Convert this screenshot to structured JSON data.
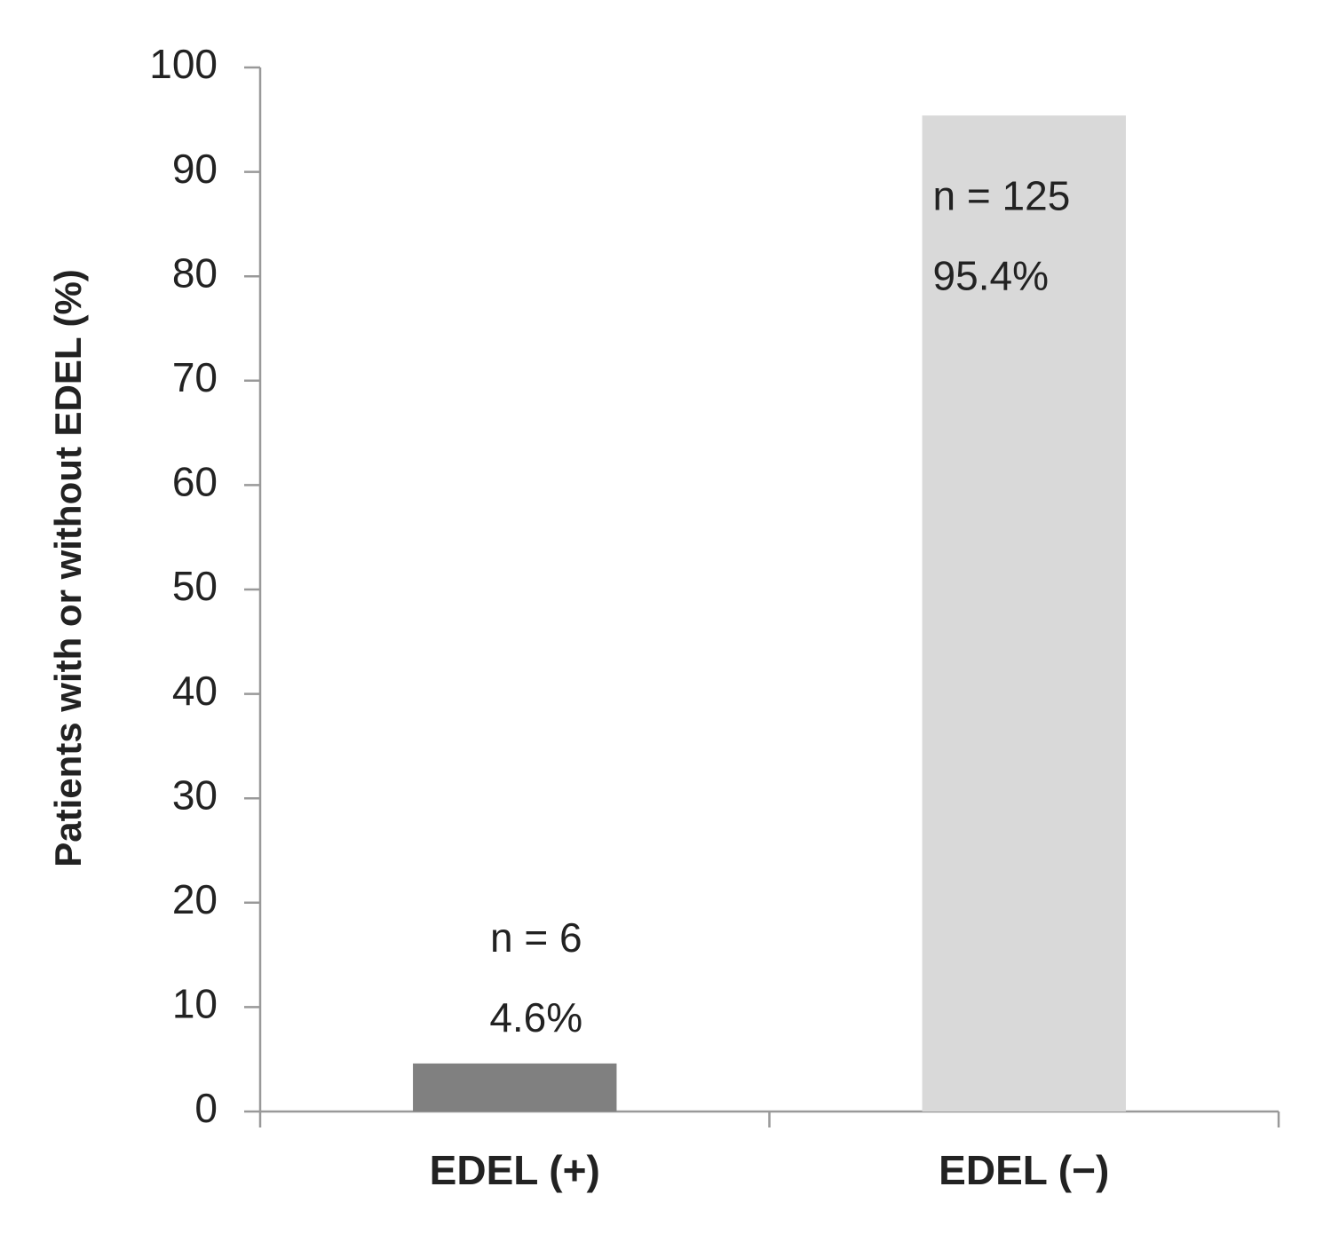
{
  "chart_data": {
    "type": "bar",
    "y_label": "Patients with  or without EDEL (%)",
    "categories": [
      "EDEL (+)",
      "EDEL (−)"
    ],
    "values": [
      4.6,
      95.4
    ],
    "value_labels": [
      "4.6%",
      "95.4%"
    ],
    "annotations": [
      "n = 6",
      "n = 125"
    ],
    "colors": [
      "#808080",
      "#d9d9d9"
    ],
    "ylim": [
      0,
      100
    ],
    "yticks": [
      0,
      10,
      20,
      30,
      40,
      50,
      60,
      70,
      80,
      90,
      100
    ],
    "grid": false
  }
}
